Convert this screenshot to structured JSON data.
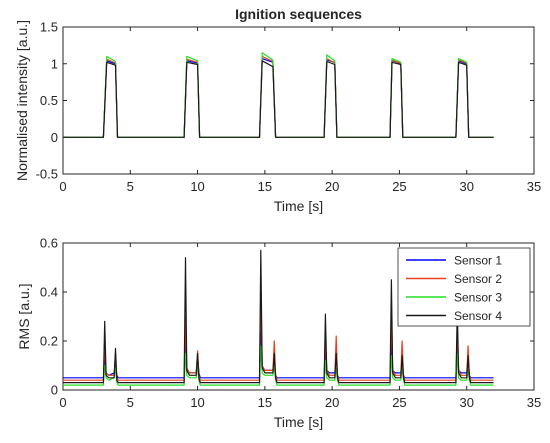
{
  "chart_data": [
    {
      "type": "line",
      "title": "Ignition sequences",
      "xlabel": "Time [s]",
      "ylabel": "Normalised intensity [a.u.]",
      "xlim": [
        0,
        35
      ],
      "ylim": [
        -0.5,
        1.5
      ],
      "xticks": [
        "0",
        "5",
        "10",
        "15",
        "20",
        "25",
        "30",
        "35"
      ],
      "yticks": [
        "-0.5",
        "0",
        "0.5",
        "1",
        "1.5"
      ],
      "grid": false,
      "series": [
        {
          "color": "#0000ff",
          "x": [
            0,
            3.0,
            3.25,
            3.9,
            4.05,
            9.0,
            9.2,
            10.0,
            10.15,
            14.6,
            14.8,
            15.6,
            15.8,
            19.4,
            19.6,
            20.2,
            20.35,
            24.3,
            24.45,
            25.1,
            25.25,
            29.2,
            29.4,
            30.0,
            30.15,
            32
          ],
          "y": [
            0,
            0,
            1.04,
            1.0,
            0,
            0,
            1.04,
            1.01,
            0,
            0,
            1.07,
            1.02,
            0,
            0,
            1.05,
            1.02,
            0,
            0,
            1.04,
            1.01,
            0,
            0,
            1.04,
            1.0,
            0,
            0
          ]
        },
        {
          "color": "#e8401c",
          "x": [
            0,
            3.0,
            3.25,
            3.9,
            4.05,
            9.0,
            9.2,
            10.0,
            10.15,
            14.6,
            14.8,
            15.6,
            15.8,
            19.4,
            19.6,
            20.2,
            20.35,
            24.3,
            24.45,
            25.1,
            25.25,
            29.2,
            29.4,
            30.0,
            30.15,
            32
          ],
          "y": [
            0,
            0,
            1.06,
            1.01,
            0,
            0,
            1.06,
            1.02,
            0,
            0,
            1.1,
            1.03,
            0,
            0,
            1.07,
            1.01,
            0,
            0,
            1.05,
            1.0,
            0,
            0,
            1.05,
            1.01,
            0,
            0
          ]
        },
        {
          "color": "#22e022",
          "x": [
            0,
            3.0,
            3.25,
            3.9,
            4.05,
            9.0,
            9.2,
            10.0,
            10.15,
            14.6,
            14.8,
            15.6,
            15.8,
            19.4,
            19.6,
            20.2,
            20.35,
            24.3,
            24.45,
            25.1,
            25.25,
            29.2,
            29.4,
            30.0,
            30.15,
            32
          ],
          "y": [
            0,
            0,
            1.1,
            1.03,
            0,
            0,
            1.1,
            1.04,
            0,
            0,
            1.15,
            1.05,
            0,
            0,
            1.12,
            1.04,
            0,
            0,
            1.07,
            1.02,
            0,
            0,
            1.07,
            1.02,
            0,
            0
          ]
        },
        {
          "color": "#1a1a1a",
          "x": [
            0,
            3.0,
            3.25,
            3.9,
            4.05,
            9.0,
            9.2,
            10.0,
            10.15,
            14.6,
            14.8,
            15.6,
            15.8,
            19.4,
            19.6,
            20.2,
            20.35,
            24.3,
            24.45,
            25.1,
            25.25,
            29.2,
            29.4,
            30.0,
            30.15,
            32
          ],
          "y": [
            0,
            0,
            1.02,
            0.98,
            0,
            0,
            1.02,
            0.99,
            0,
            0,
            1.04,
            0.96,
            0,
            0,
            1.03,
            0.99,
            0,
            0,
            1.02,
            0.99,
            0,
            0,
            1.02,
            0.98,
            0,
            0
          ]
        }
      ]
    },
    {
      "type": "line",
      "title": "",
      "xlabel": "Time [s]",
      "ylabel": "RMS [a.u.]",
      "xlim": [
        0,
        35
      ],
      "ylim": [
        0,
        0.6
      ],
      "xticks": [
        "0",
        "5",
        "10",
        "15",
        "20",
        "25",
        "30",
        "35"
      ],
      "yticks": [
        "0",
        "0.2",
        "0.4",
        "0.6"
      ],
      "grid": false,
      "legend_position": "top-right",
      "series": [
        {
          "name": "Sensor 1",
          "color": "#0000ff",
          "x": [
            0,
            3.0,
            3.1,
            3.2,
            3.4,
            3.8,
            3.9,
            4.0,
            4.1,
            9.0,
            9.1,
            9.2,
            9.4,
            9.9,
            10.0,
            10.1,
            10.2,
            14.6,
            14.7,
            14.8,
            15.0,
            15.6,
            15.7,
            15.8,
            15.9,
            19.4,
            19.5,
            19.6,
            19.8,
            20.2,
            20.3,
            20.4,
            20.5,
            24.3,
            24.4,
            24.5,
            24.7,
            25.1,
            25.2,
            25.3,
            25.4,
            29.2,
            29.3,
            29.4,
            29.6,
            30.0,
            30.1,
            30.2,
            30.3,
            32
          ],
          "y": [
            0.05,
            0.05,
            0.13,
            0.07,
            0.06,
            0.07,
            0.11,
            0.06,
            0.05,
            0.05,
            0.2,
            0.08,
            0.07,
            0.07,
            0.14,
            0.07,
            0.05,
            0.05,
            0.24,
            0.09,
            0.08,
            0.08,
            0.12,
            0.06,
            0.05,
            0.05,
            0.18,
            0.08,
            0.07,
            0.07,
            0.14,
            0.06,
            0.05,
            0.05,
            0.2,
            0.08,
            0.07,
            0.07,
            0.13,
            0.06,
            0.05,
            0.05,
            0.2,
            0.08,
            0.07,
            0.07,
            0.13,
            0.06,
            0.05,
            0.05
          ]
        },
        {
          "name": "Sensor 2",
          "color": "#e8401c",
          "x": [
            0,
            3.0,
            3.1,
            3.2,
            3.4,
            3.8,
            3.9,
            4.0,
            4.1,
            9.0,
            9.1,
            9.2,
            9.4,
            9.9,
            10.0,
            10.1,
            10.2,
            14.6,
            14.7,
            14.8,
            15.0,
            15.6,
            15.7,
            15.8,
            15.9,
            19.4,
            19.5,
            19.6,
            19.8,
            20.2,
            20.3,
            20.4,
            20.5,
            24.3,
            24.4,
            24.5,
            24.7,
            25.1,
            25.2,
            25.3,
            25.4,
            29.2,
            29.3,
            29.4,
            29.6,
            30.0,
            30.1,
            30.2,
            30.3,
            32
          ],
          "y": [
            0.04,
            0.04,
            0.18,
            0.07,
            0.06,
            0.06,
            0.15,
            0.05,
            0.04,
            0.04,
            0.3,
            0.09,
            0.07,
            0.07,
            0.16,
            0.06,
            0.04,
            0.04,
            0.4,
            0.1,
            0.08,
            0.08,
            0.2,
            0.06,
            0.04,
            0.04,
            0.22,
            0.08,
            0.06,
            0.06,
            0.22,
            0.06,
            0.04,
            0.04,
            0.3,
            0.08,
            0.06,
            0.06,
            0.2,
            0.06,
            0.04,
            0.04,
            0.25,
            0.08,
            0.06,
            0.06,
            0.18,
            0.06,
            0.04,
            0.04
          ]
        },
        {
          "name": "Sensor 3",
          "color": "#22e022",
          "x": [
            0,
            3.0,
            3.1,
            3.2,
            3.4,
            3.8,
            3.9,
            4.0,
            4.1,
            9.0,
            9.1,
            9.2,
            9.4,
            9.9,
            10.0,
            10.1,
            10.2,
            14.6,
            14.7,
            14.8,
            15.0,
            15.6,
            15.7,
            15.8,
            15.9,
            19.4,
            19.5,
            19.6,
            19.8,
            20.2,
            20.3,
            20.4,
            20.5,
            24.3,
            24.4,
            24.5,
            24.7,
            25.1,
            25.2,
            25.3,
            25.4,
            29.2,
            29.3,
            29.4,
            29.6,
            30.0,
            30.1,
            30.2,
            30.3,
            32
          ],
          "y": [
            0.02,
            0.02,
            0.1,
            0.05,
            0.04,
            0.05,
            0.09,
            0.03,
            0.02,
            0.02,
            0.15,
            0.06,
            0.05,
            0.05,
            0.1,
            0.04,
            0.02,
            0.02,
            0.18,
            0.07,
            0.06,
            0.06,
            0.1,
            0.04,
            0.02,
            0.02,
            0.12,
            0.05,
            0.04,
            0.04,
            0.09,
            0.04,
            0.02,
            0.02,
            0.14,
            0.05,
            0.04,
            0.04,
            0.09,
            0.04,
            0.02,
            0.02,
            0.15,
            0.05,
            0.04,
            0.04,
            0.08,
            0.04,
            0.02,
            0.02
          ]
        },
        {
          "name": "Sensor 4",
          "color": "#1a1a1a",
          "x": [
            0,
            3.0,
            3.1,
            3.2,
            3.4,
            3.8,
            3.9,
            4.0,
            4.1,
            9.0,
            9.1,
            9.2,
            9.4,
            9.9,
            10.0,
            10.1,
            10.2,
            14.6,
            14.7,
            14.8,
            15.0,
            15.6,
            15.7,
            15.8,
            15.9,
            19.4,
            19.5,
            19.6,
            19.8,
            20.2,
            20.3,
            20.4,
            20.5,
            24.3,
            24.4,
            24.5,
            24.7,
            25.1,
            25.2,
            25.3,
            25.4,
            29.2,
            29.3,
            29.4,
            29.6,
            30.0,
            30.1,
            30.2,
            30.3,
            32
          ],
          "y": [
            0.03,
            0.03,
            0.28,
            0.06,
            0.05,
            0.05,
            0.17,
            0.04,
            0.03,
            0.03,
            0.54,
            0.08,
            0.06,
            0.06,
            0.15,
            0.05,
            0.03,
            0.03,
            0.57,
            0.09,
            0.07,
            0.07,
            0.15,
            0.05,
            0.03,
            0.03,
            0.31,
            0.07,
            0.05,
            0.05,
            0.15,
            0.05,
            0.03,
            0.03,
            0.45,
            0.07,
            0.05,
            0.05,
            0.14,
            0.05,
            0.03,
            0.03,
            0.33,
            0.07,
            0.05,
            0.05,
            0.14,
            0.05,
            0.03,
            0.03
          ]
        }
      ]
    }
  ]
}
